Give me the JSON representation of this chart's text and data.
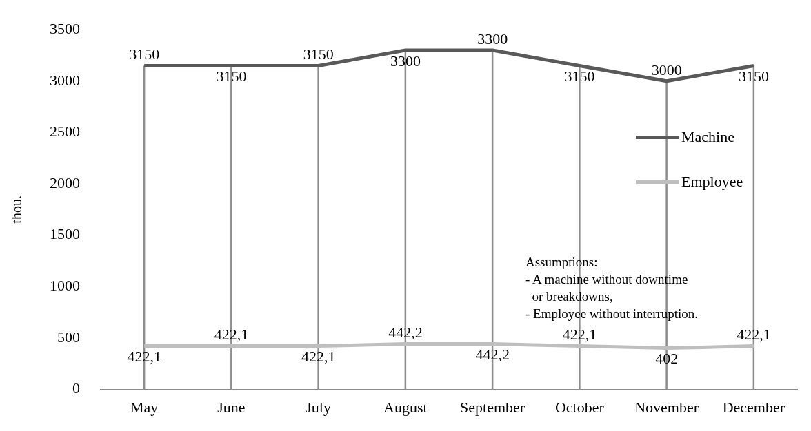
{
  "chart_data": {
    "type": "line",
    "ylabel": "thou.",
    "categories": [
      "May",
      "June",
      "July",
      "August",
      "September",
      "October",
      "November",
      "December"
    ],
    "series": [
      {
        "name": "Machine",
        "color": "#595959",
        "values": [
          3150,
          3150,
          3150,
          3300,
          3300,
          3150,
          3000,
          3150
        ],
        "value_labels": [
          "3150",
          "3150",
          "3150",
          "3300",
          "3300",
          "3150",
          "3000",
          "3150"
        ]
      },
      {
        "name": "Employee",
        "color": "#bfbfbf",
        "values": [
          422.1,
          422.1,
          422.1,
          442.2,
          442.2,
          422.1,
          402,
          422.1
        ],
        "value_labels": [
          "422,1",
          "422,1",
          "422,1",
          "442,2",
          "442,2",
          "422,1",
          "402",
          "422,1"
        ]
      }
    ],
    "ylim": [
      0,
      3500
    ],
    "yticks": [
      0,
      500,
      1000,
      1500,
      2000,
      2500,
      3000,
      3500
    ],
    "grid": "x",
    "legend": "right",
    "marker": "none",
    "line_style": "solid",
    "annotations": [
      "Assumptions:\n- A machine without downtime\n  or breakdowns,\n- Employee without interruption."
    ]
  }
}
